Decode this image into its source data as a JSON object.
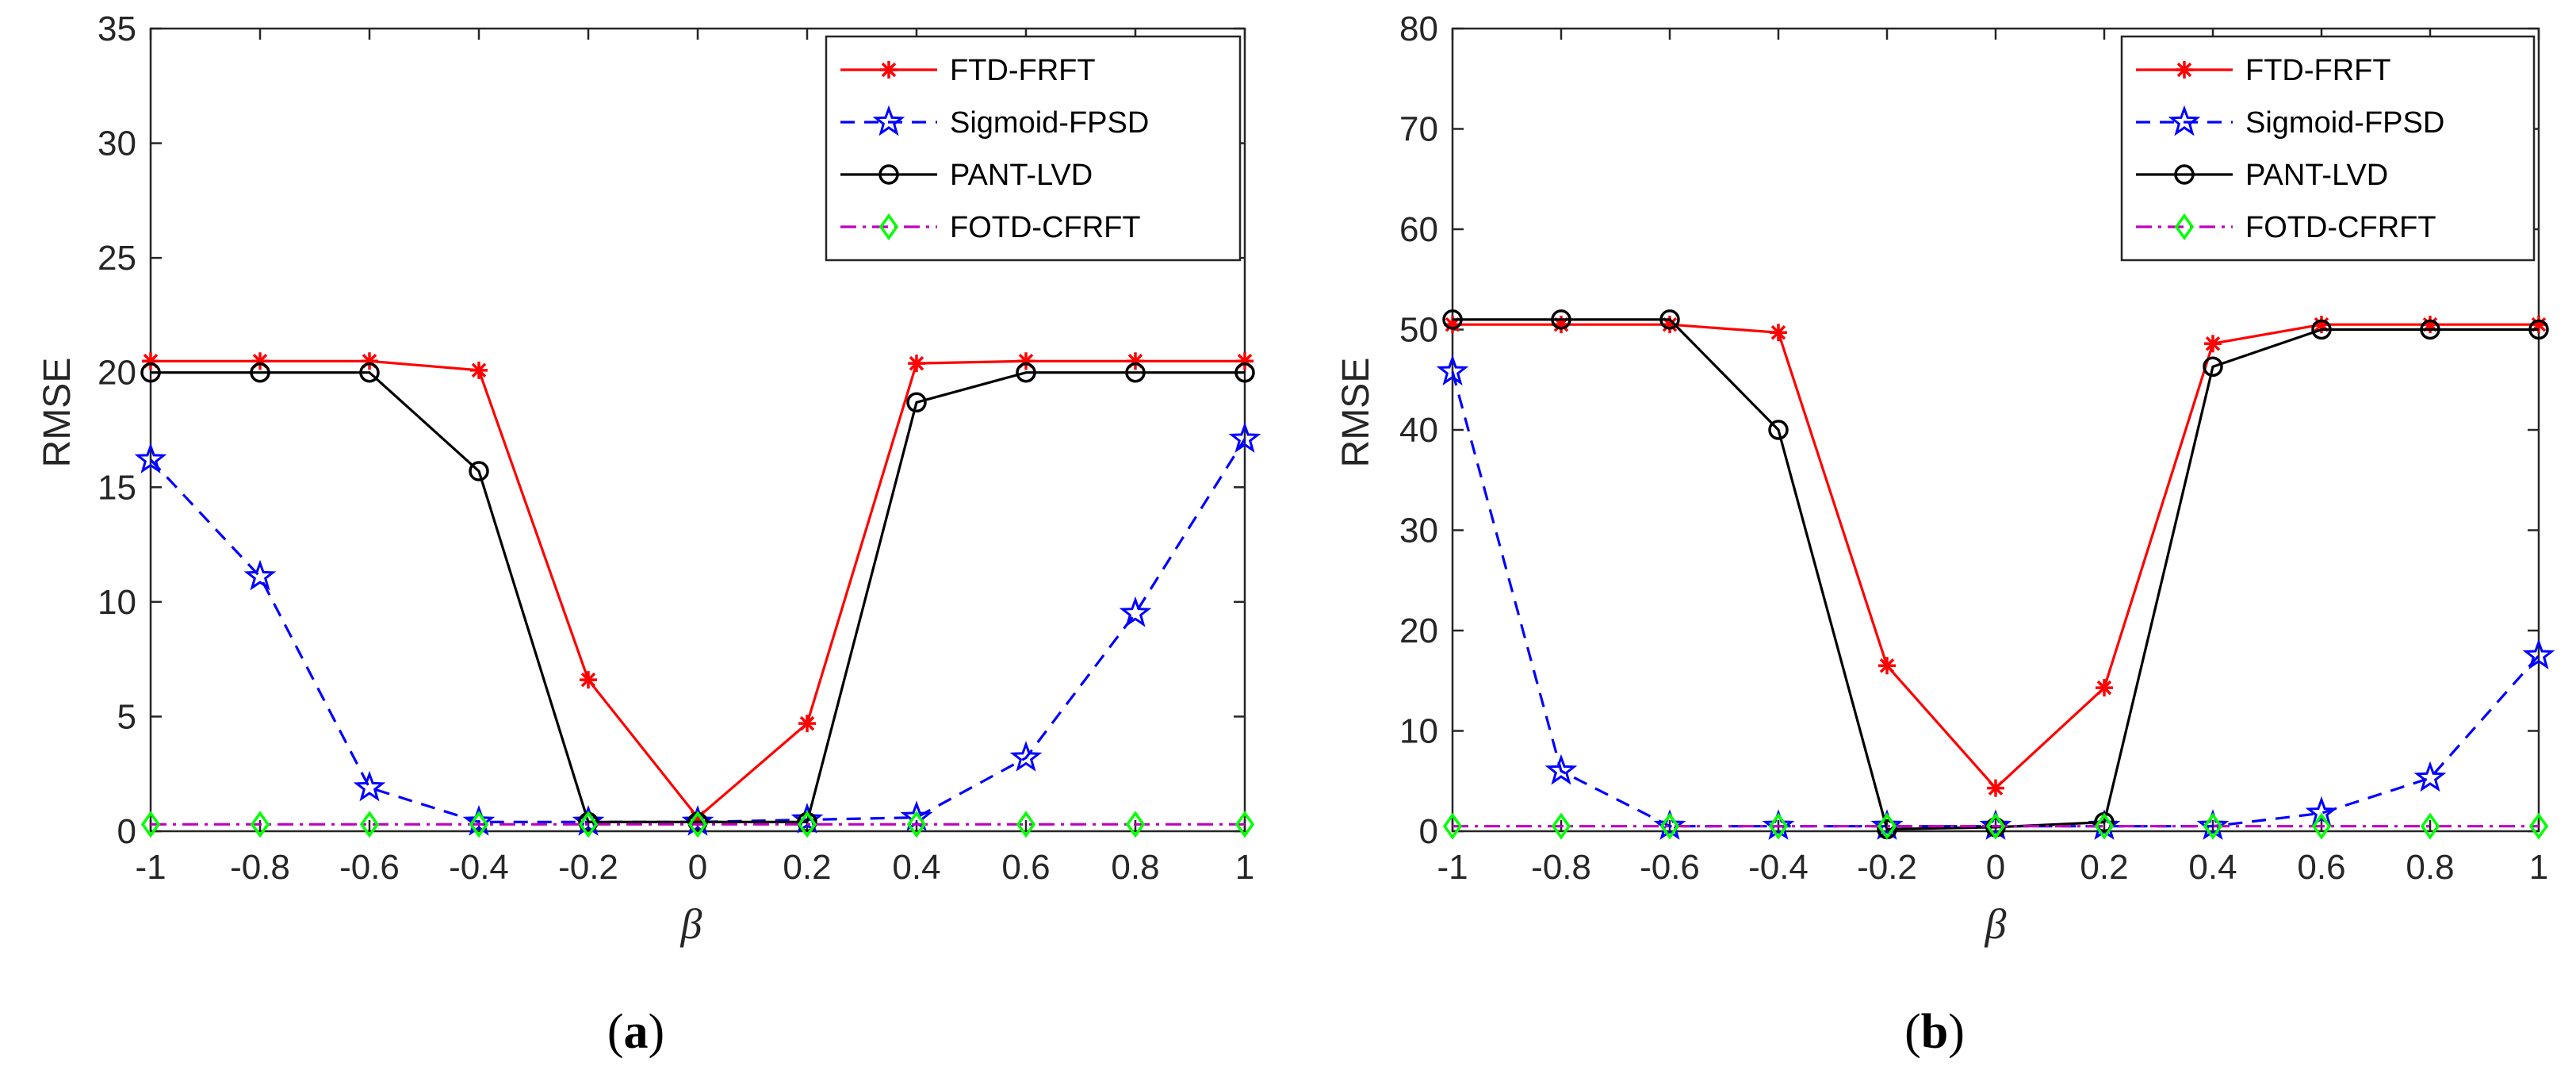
{
  "colors": {
    "ftd_frft": "#ff0000",
    "sigmoid_fpsd": "#0000ff",
    "pant_lvd": "#000000",
    "fotd_cfrft_line": "#bf00bf",
    "fotd_cfrft_marker": "#00ff00",
    "axis": "#262626"
  },
  "chart_data": [
    {
      "type": "line",
      "caption": {
        "open": "(",
        "letter": "a",
        "close": ")"
      },
      "xlabel": "β",
      "ylabel": "RMSE",
      "xlim": [
        -1,
        1
      ],
      "ylim": [
        0,
        35
      ],
      "xticks": [
        -1,
        -0.8,
        -0.6,
        -0.4,
        -0.2,
        0,
        0.2,
        0.4,
        0.6,
        0.8,
        1
      ],
      "xtick_labels": [
        "-1",
        "-0.8",
        "-0.6",
        "-0.4",
        "-0.2",
        "0",
        "0.2",
        "0.4",
        "0.6",
        "0.8",
        "1"
      ],
      "yticks": [
        0,
        5,
        10,
        15,
        20,
        25,
        30,
        35
      ],
      "ytick_labels": [
        "0",
        "5",
        "10",
        "15",
        "20",
        "25",
        "30",
        "35"
      ],
      "legend_position": "top-right",
      "x": [
        -1,
        -0.8,
        -0.6,
        -0.4,
        -0.2,
        0,
        0.2,
        0.4,
        0.6,
        0.8,
        1
      ],
      "series": [
        {
          "name": "FTD-FRFT",
          "values": [
            20.5,
            20.5,
            20.5,
            20.1,
            6.6,
            0.6,
            4.7,
            20.4,
            20.5,
            20.5,
            20.5
          ]
        },
        {
          "name": "Sigmoid-FPSD",
          "values": [
            16.2,
            11.1,
            1.9,
            0.4,
            0.4,
            0.4,
            0.5,
            0.6,
            3.2,
            9.5,
            17.1
          ]
        },
        {
          "name": "PANT-LVD",
          "values": [
            20.0,
            20.0,
            20.0,
            15.7,
            0.4,
            0.4,
            0.4,
            18.7,
            20.0,
            20.0,
            20.0
          ]
        },
        {
          "name": "FOTD-CFRFT",
          "values": [
            0.3,
            0.3,
            0.3,
            0.3,
            0.3,
            0.3,
            0.3,
            0.3,
            0.3,
            0.3,
            0.3
          ]
        }
      ]
    },
    {
      "type": "line",
      "caption": {
        "open": "(",
        "letter": "b",
        "close": ")"
      },
      "xlabel": "β",
      "ylabel": "RMSE",
      "xlim": [
        -1,
        1
      ],
      "ylim": [
        0,
        80
      ],
      "xticks": [
        -1,
        -0.8,
        -0.6,
        -0.4,
        -0.2,
        0,
        0.2,
        0.4,
        0.6,
        0.8,
        1
      ],
      "xtick_labels": [
        "-1",
        "-0.8",
        "-0.6",
        "-0.4",
        "-0.2",
        "0",
        "0.2",
        "0.4",
        "0.6",
        "0.8",
        "1"
      ],
      "yticks": [
        0,
        10,
        20,
        30,
        40,
        50,
        60,
        70,
        80
      ],
      "ytick_labels": [
        "0",
        "10",
        "20",
        "30",
        "40",
        "50",
        "60",
        "70",
        "80"
      ],
      "legend_position": "top-right",
      "x": [
        -1,
        -0.8,
        -0.6,
        -0.4,
        -0.2,
        0,
        0.2,
        0.4,
        0.6,
        0.8,
        1
      ],
      "series": [
        {
          "name": "FTD-FRFT",
          "values": [
            50.5,
            50.5,
            50.5,
            49.7,
            16.5,
            4.3,
            14.3,
            48.6,
            50.5,
            50.5,
            50.5
          ]
        },
        {
          "name": "Sigmoid-FPSD",
          "values": [
            45.8,
            6.0,
            0.5,
            0.5,
            0.5,
            0.5,
            0.5,
            0.5,
            1.8,
            5.3,
            17.5
          ]
        },
        {
          "name": "PANT-LVD",
          "values": [
            51.0,
            51.0,
            51.0,
            40.0,
            0.2,
            0.4,
            0.9,
            46.3,
            50.0,
            50.0,
            50.0
          ]
        },
        {
          "name": "FOTD-CFRFT",
          "values": [
            0.5,
            0.5,
            0.5,
            0.5,
            0.5,
            0.5,
            0.5,
            0.5,
            0.5,
            0.5,
            0.5
          ]
        }
      ]
    }
  ]
}
